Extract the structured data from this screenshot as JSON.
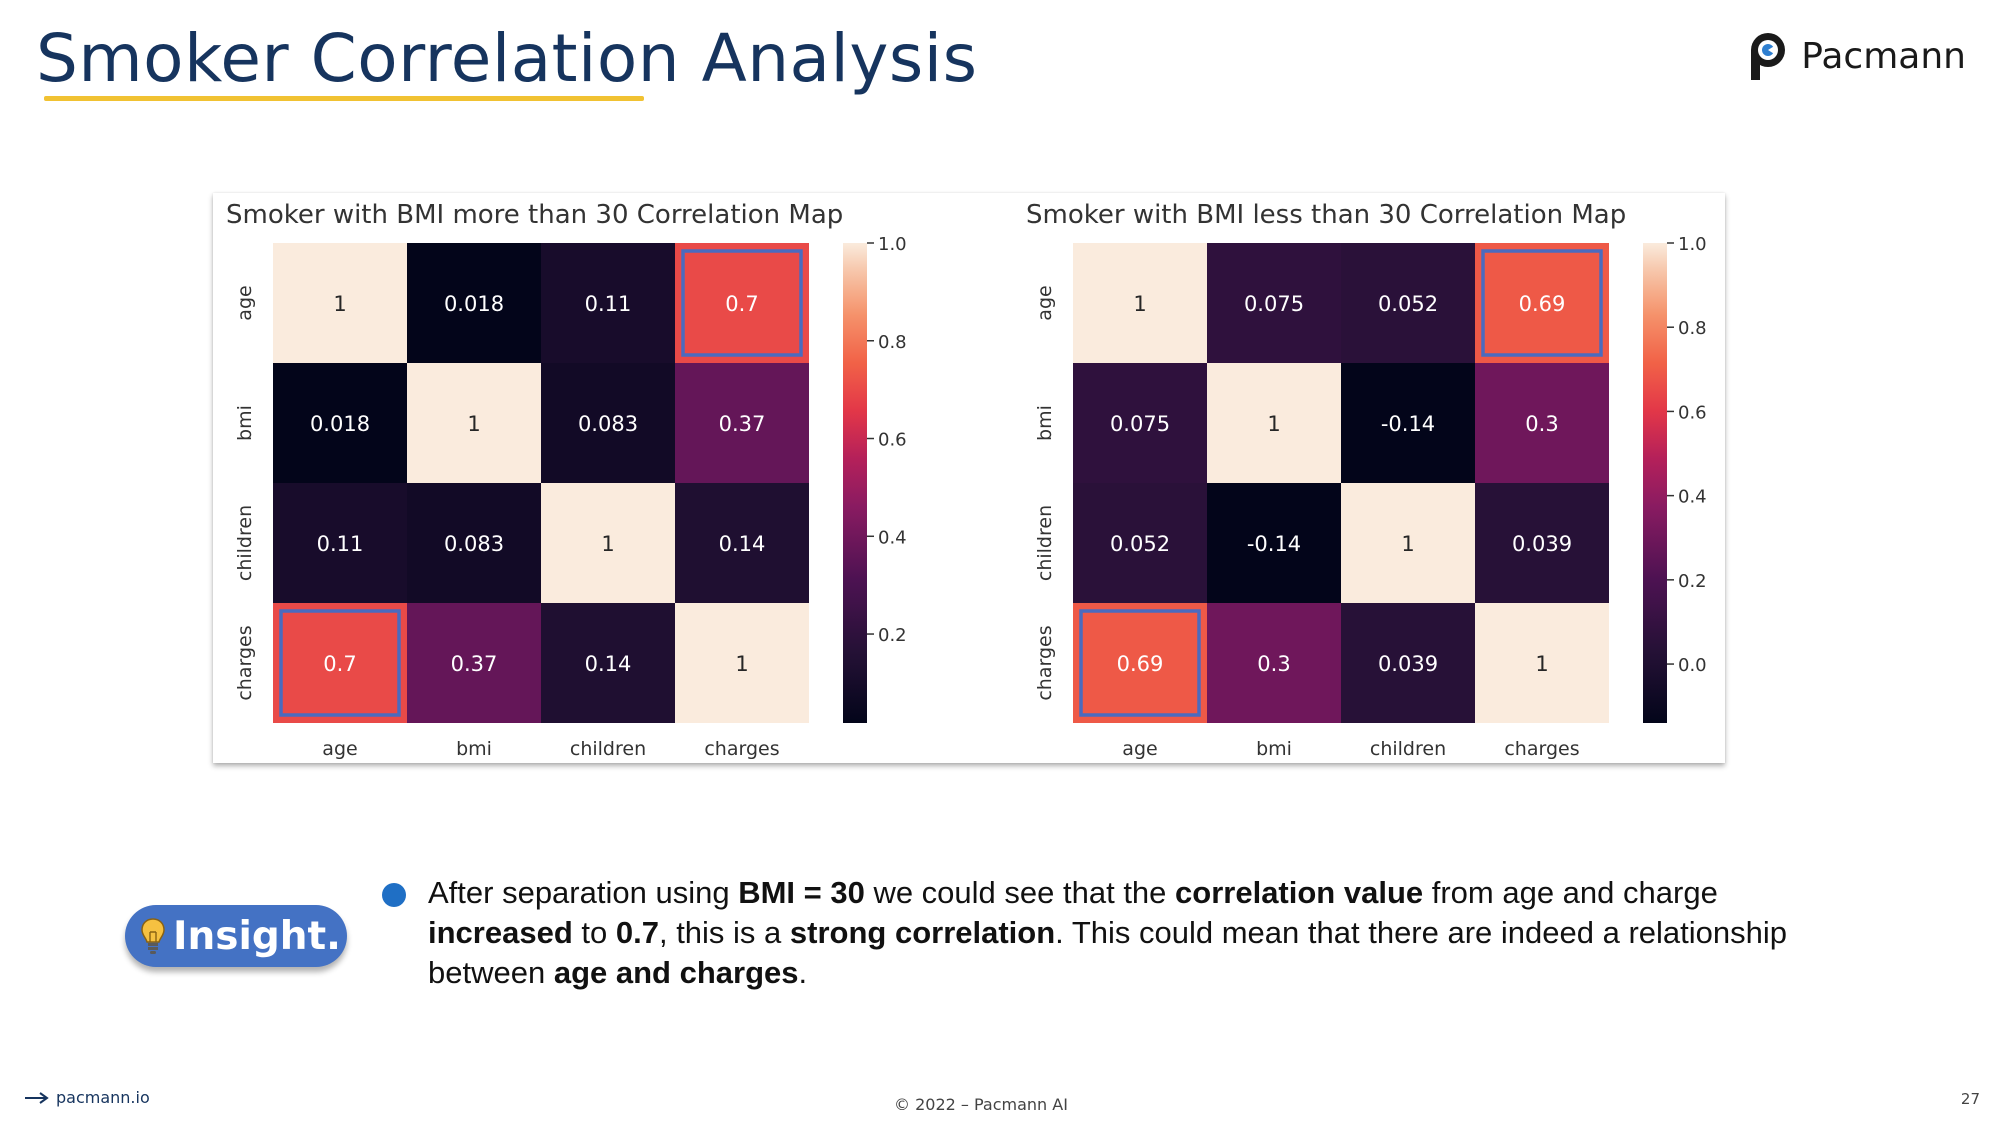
{
  "slide": {
    "title": "Smoker Correlation Analysis",
    "brand_name": "Pacmann",
    "insight_label": "Insight.",
    "insight_parts": [
      {
        "text": "After separation using ",
        "bold": false
      },
      {
        "text": "BMI = 30",
        "bold": true
      },
      {
        "text": " we could see that the ",
        "bold": false
      },
      {
        "text": "correlation value",
        "bold": true
      },
      {
        "text": " from age and charge ",
        "bold": false
      },
      {
        "text": "increased",
        "bold": true
      },
      {
        "text": " to ",
        "bold": false
      },
      {
        "text": "0.7",
        "bold": true
      },
      {
        "text": ", this is a ",
        "bold": false
      },
      {
        "text": "strong correlation",
        "bold": true
      },
      {
        "text": ". This could mean that there are indeed a relationship between ",
        "bold": false
      },
      {
        "text": "age and charges",
        "bold": true
      },
      {
        "text": ".",
        "bold": false
      }
    ],
    "footer_url": "pacmann.io",
    "footer_copyright": "© 2022 – Pacmann AI",
    "page_number": "27",
    "colors": {
      "title": "#16345e",
      "underline": "#f1c232",
      "insight_badge": "#4472c4",
      "bullet": "#1f6fc5",
      "highlight_box": "#4a6bbf"
    },
    "icons": [
      "pacmann-logo-icon",
      "lightbulb-icon",
      "arrow-right-icon"
    ]
  },
  "chart_data": [
    {
      "type": "heatmap",
      "title": "Smoker with BMI more than 30 Correlation Map",
      "rows": [
        "age",
        "bmi",
        "children",
        "charges"
      ],
      "cols": [
        "age",
        "bmi",
        "children",
        "charges"
      ],
      "values": [
        [
          1,
          0.018,
          0.11,
          0.7
        ],
        [
          0.018,
          1,
          0.083,
          0.37
        ],
        [
          0.11,
          0.083,
          1,
          0.14
        ],
        [
          0.7,
          0.37,
          0.14,
          1
        ]
      ],
      "value_labels": [
        [
          "1",
          "0.018",
          "0.11",
          "0.7"
        ],
        [
          "0.018",
          "1",
          "0.083",
          "0.37"
        ],
        [
          "0.11",
          "0.083",
          "1",
          "0.14"
        ],
        [
          "0.7",
          "0.37",
          "0.14",
          "1"
        ]
      ],
      "colormap": "rocket",
      "colorbar_range": [
        0.018,
        1.0
      ],
      "colorbar_ticks": [
        1.0,
        0.8,
        0.6,
        0.4,
        0.2
      ],
      "colorbar_tick_labels": [
        "1.0",
        "0.8",
        "0.6",
        "0.4",
        "0.2"
      ],
      "highlighted_cells": [
        [
          0,
          3
        ],
        [
          3,
          0
        ]
      ]
    },
    {
      "type": "heatmap",
      "title": "Smoker with BMI less than 30 Correlation Map",
      "rows": [
        "age",
        "bmi",
        "children",
        "charges"
      ],
      "cols": [
        "age",
        "bmi",
        "children",
        "charges"
      ],
      "values": [
        [
          1,
          0.075,
          0.052,
          0.69
        ],
        [
          0.075,
          1,
          -0.14,
          0.3
        ],
        [
          0.052,
          -0.14,
          1,
          0.039
        ],
        [
          0.69,
          0.3,
          0.039,
          1
        ]
      ],
      "value_labels": [
        [
          "1",
          "0.075",
          "0.052",
          "0.69"
        ],
        [
          "0.075",
          "1",
          "-0.14",
          "0.3"
        ],
        [
          "0.052",
          "-0.14",
          "1",
          "0.039"
        ],
        [
          "0.69",
          "0.3",
          "0.039",
          "1"
        ]
      ],
      "colormap": "rocket",
      "colorbar_range": [
        -0.14,
        1.0
      ],
      "colorbar_ticks": [
        1.0,
        0.8,
        0.6,
        0.4,
        0.2,
        0.0
      ],
      "colorbar_tick_labels": [
        "1.0",
        "0.8",
        "0.6",
        "0.4",
        "0.2",
        "0.0"
      ],
      "highlighted_cells": [
        [
          0,
          3
        ],
        [
          3,
          0
        ]
      ]
    }
  ]
}
